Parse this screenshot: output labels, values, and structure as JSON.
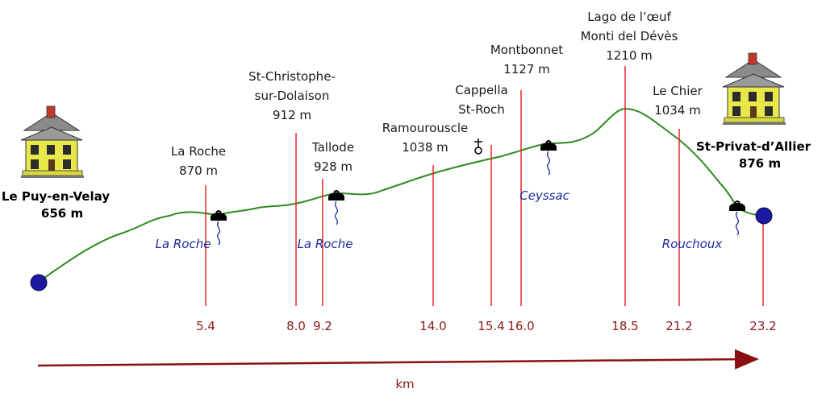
{
  "start": {
    "name": "Le Puy-en-Velay",
    "elev": "656 m"
  },
  "end": {
    "name": "St-Privat-d’Allier",
    "elev": "876 m"
  },
  "waypoints": [
    {
      "lines": [
        "La Roche",
        "870 m"
      ],
      "km": "5.4"
    },
    {
      "lines": [
        "St-Christophe-",
        "sur-Dolaison",
        "912 m"
      ],
      "km": "8.0"
    },
    {
      "lines": [
        "Tallode",
        "928 m"
      ],
      "km": "9.2"
    },
    {
      "lines": [
        "Ramourouscle",
        "1038 m"
      ],
      "km": "14.0"
    },
    {
      "lines": [
        "Cappella",
        "St-Roch"
      ],
      "km": "15.4"
    },
    {
      "lines": [
        "Montbonnet",
        "1127 m"
      ],
      "km": "16.0"
    },
    {
      "lines": [
        "Lago de l’œuf",
        "Monti del Dévès",
        "1210 m"
      ],
      "km": "18.5"
    },
    {
      "lines": [
        "Le Chier",
        "1034 m"
      ],
      "km": "21.2"
    }
  ],
  "end_km": "23.2",
  "springs": [
    "La Roche",
    "La Roche",
    "Ceyssac",
    "Rouchoux"
  ],
  "axis_label": "km",
  "colors": {
    "profile": "#2e8b20",
    "marker": "#e8282b",
    "distance": "#8b1a1a",
    "spring": "#1f2a9c",
    "endpoint": "#1a1aa0",
    "axis": "#8b1010"
  },
  "icons": [
    "house-icon",
    "water-source-icon",
    "chapel-icon"
  ]
}
